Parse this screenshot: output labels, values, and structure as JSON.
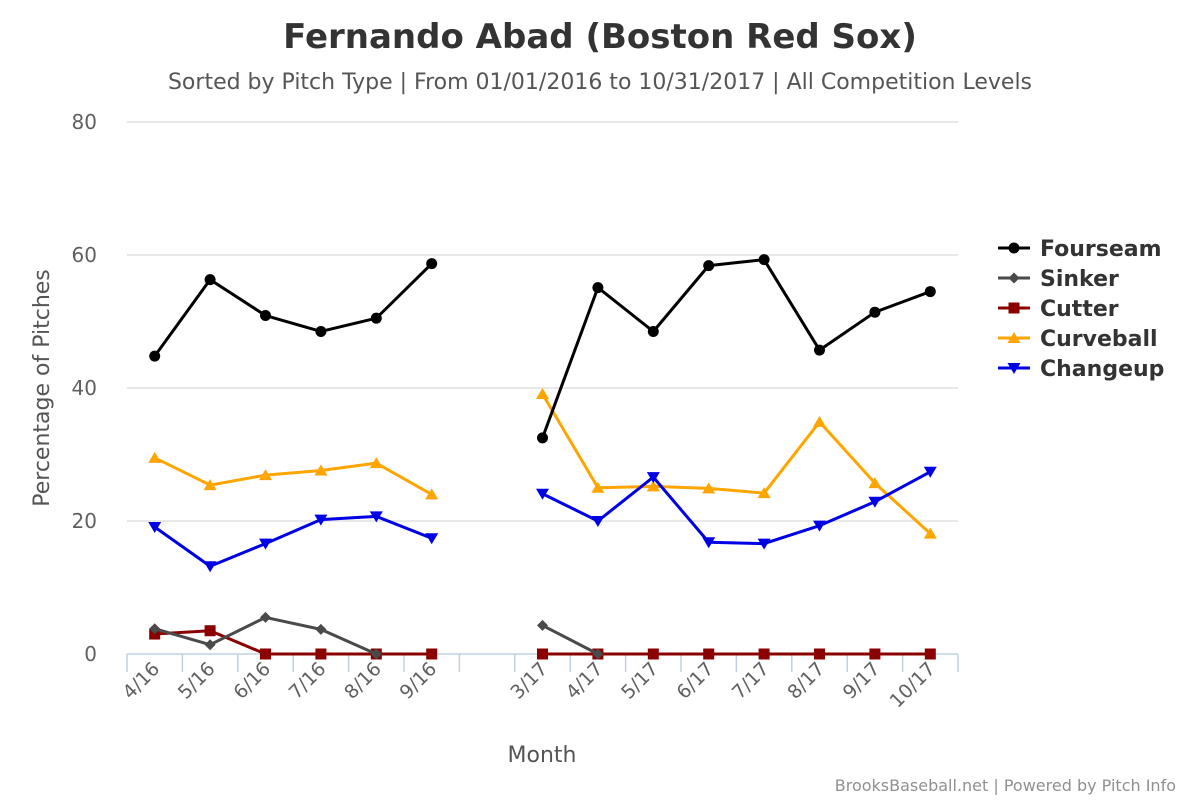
{
  "chart_data": {
    "type": "line",
    "title": "Fernando Abad (Boston Red Sox)",
    "subtitle": "Sorted by Pitch Type | From 01/01/2016 to 10/31/2017 | All Competition Levels",
    "xlabel": "Month",
    "ylabel": "Percentage of Pitches",
    "ylim": [
      0,
      80
    ],
    "yticks": [
      0,
      20,
      40,
      60,
      80
    ],
    "grid": true,
    "legend": "right",
    "categories": [
      "4/16",
      "5/16",
      "6/16",
      "7/16",
      "8/16",
      "9/16",
      "",
      "3/17",
      "4/17",
      "5/17",
      "6/17",
      "7/17",
      "8/17",
      "9/17",
      "10/17"
    ],
    "series": [
      {
        "name": "Fourseam",
        "color": "#000000",
        "marker": "circle",
        "values": [
          44.8,
          56.3,
          50.9,
          48.5,
          50.5,
          58.7,
          null,
          32.5,
          55.1,
          48.5,
          58.4,
          59.3,
          45.7,
          51.4,
          54.5
        ]
      },
      {
        "name": "Sinker",
        "color": "#4a4a4a",
        "marker": "diamond",
        "values": [
          3.8,
          1.4,
          5.5,
          3.7,
          0,
          null,
          null,
          4.3,
          0,
          null,
          null,
          null,
          null,
          null,
          null
        ]
      },
      {
        "name": "Cutter",
        "color": "#8b0000",
        "marker": "square",
        "values": [
          3.0,
          3.5,
          0,
          0,
          0,
          0,
          null,
          0,
          0,
          0,
          0,
          0,
          0,
          0,
          0
        ]
      },
      {
        "name": "Curveball",
        "color": "#ffa500",
        "marker": "triangle-up",
        "values": [
          29.5,
          25.4,
          26.9,
          27.6,
          28.7,
          24.0,
          null,
          39.1,
          25.0,
          25.2,
          24.9,
          24.2,
          34.9,
          25.7,
          18.1
        ]
      },
      {
        "name": "Changeup",
        "color": "#0000e6",
        "marker": "triangle-down",
        "values": [
          19.1,
          13.2,
          16.6,
          20.2,
          20.7,
          17.4,
          null,
          24.1,
          20.0,
          26.6,
          16.8,
          16.6,
          19.3,
          22.9,
          27.4
        ]
      }
    ]
  },
  "credit": "BrooksBaseball.net | Powered by Pitch Info"
}
